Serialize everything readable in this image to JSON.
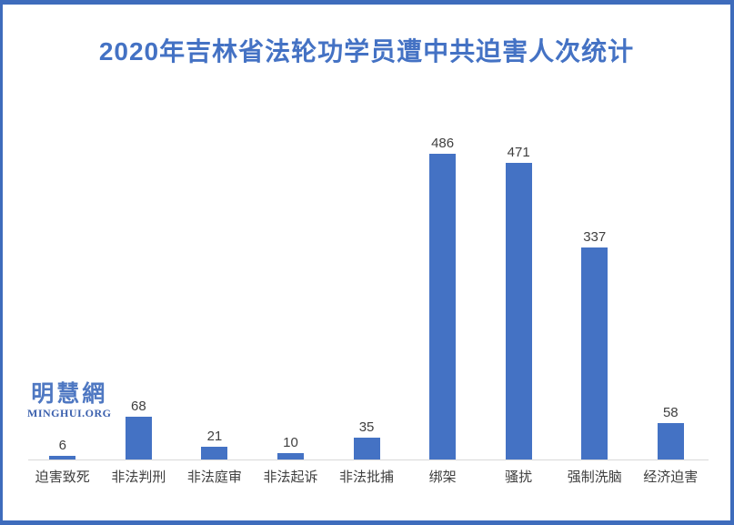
{
  "chart_data": {
    "type": "bar",
    "title": "2020年吉林省法轮功学员遭中共迫害人次统计",
    "categories": [
      "迫害致死",
      "非法判刑",
      "非法庭审",
      "非法起诉",
      "非法批捕",
      "绑架",
      "骚扰",
      "强制洗脑",
      "经济迫害"
    ],
    "values": [
      6,
      68,
      21,
      10,
      35,
      486,
      471,
      337,
      58
    ],
    "xlabel": "",
    "ylabel": "",
    "ylim": [
      0,
      486
    ],
    "grid": false,
    "legend": false,
    "bar_color": "#4472c4",
    "value_label_color": "#404040",
    "axis_line_color": "#d9d9d9",
    "title_color": "#4472c4"
  },
  "watermark": {
    "chinese": "明慧網",
    "english": "MINGHUI.ORG"
  },
  "frame": {
    "border_color": "#3e6cbc",
    "background": "#ffffff"
  }
}
